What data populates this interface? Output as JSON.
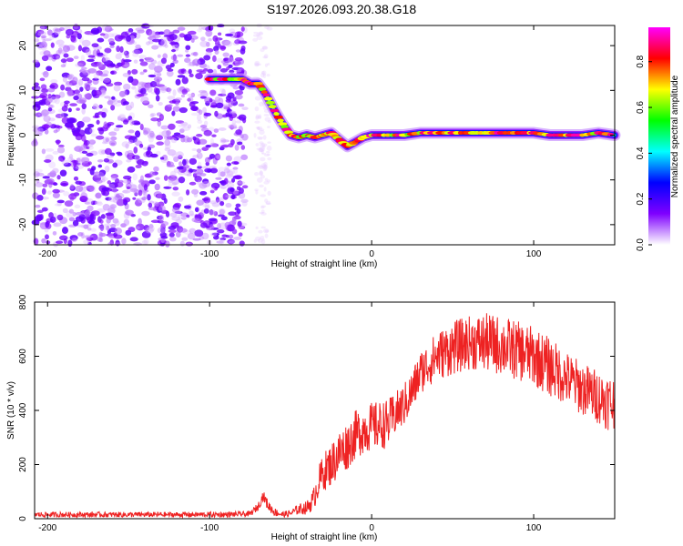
{
  "title": "S197.2026.093.20.38.G18",
  "chart_data": [
    {
      "type": "heatmap",
      "name": "spectrogram",
      "xlabel": "Height of straight line (km)",
      "ylabel": "Frequency (Hz)",
      "xlim": [
        -208,
        150
      ],
      "ylim": [
        -24.5,
        24.5
      ],
      "xticks": [
        "-200",
        "-100",
        "0",
        "100"
      ],
      "xtick_values": [
        -200,
        -100,
        0,
        100
      ],
      "yticks": [
        "-20",
        "-10",
        "0",
        "10",
        "20"
      ],
      "ytick_values": [
        -20,
        -10,
        0,
        10,
        20
      ],
      "noise_region_x": [
        -208,
        -78
      ],
      "sparse_noise_region_x": [
        -72,
        -63
      ],
      "ridge": {
        "x": [
          -100,
          -90,
          -80,
          -75,
          -70,
          -65,
          -60,
          -55,
          -50,
          -45,
          -40,
          -35,
          -30,
          -25,
          -20,
          -15,
          -10,
          -5,
          0,
          10,
          20,
          30,
          40,
          50,
          60,
          70,
          80,
          90,
          100,
          110,
          120,
          130,
          140,
          150
        ],
        "y": [
          12.5,
          12.5,
          12.5,
          11.5,
          11.5,
          9.0,
          5.5,
          2.5,
          0.0,
          -0.5,
          0.0,
          -0.5,
          0.0,
          0.5,
          -1.0,
          -2.5,
          -1.5,
          -0.5,
          0.0,
          0.0,
          0.0,
          0.5,
          0.5,
          0.5,
          0.5,
          0.5,
          0.5,
          0.5,
          0.5,
          0.0,
          0.0,
          0.0,
          0.5,
          0.0
        ]
      },
      "colorbar": {
        "label": "Normalized spectral amplitude",
        "ticks": [
          "0.0",
          "0.2",
          "0.4",
          "0.6",
          "0.8"
        ],
        "tick_values": [
          0.0,
          0.2,
          0.4,
          0.6,
          0.8
        ],
        "range": [
          0.0,
          0.95
        ],
        "colormap": [
          "#ffffff",
          "#7f00ff",
          "#0000ff",
          "#00ffff",
          "#00ff00",
          "#ffff00",
          "#ff0000",
          "#ff00ff"
        ]
      }
    },
    {
      "type": "line",
      "name": "snr",
      "xlabel": "Height of straight line (km)",
      "ylabel": "SNR (10 * v/v)",
      "xlim": [
        -208,
        150
      ],
      "ylim": [
        0,
        800
      ],
      "xticks": [
        "-200",
        "-100",
        "0",
        "100"
      ],
      "xtick_values": [
        -200,
        -100,
        0,
        100
      ],
      "yticks": [
        "0",
        "200",
        "400",
        "600",
        "800"
      ],
      "ytick_values": [
        0,
        200,
        400,
        600,
        800
      ],
      "color": "#ee2222",
      "series": [
        {
          "name": "SNR",
          "x": [
            -208,
            -190,
            -170,
            -150,
            -130,
            -110,
            -90,
            -75,
            -70,
            -67,
            -64,
            -60,
            -55,
            -50,
            -45,
            -40,
            -36,
            -33,
            -30,
            -25,
            -20,
            -15,
            -10,
            -5,
            0,
            5,
            10,
            15,
            20,
            25,
            30,
            40,
            50,
            60,
            70,
            80,
            90,
            100,
            110,
            120,
            130,
            140,
            150
          ],
          "mean": [
            15,
            15,
            15,
            15,
            15,
            15,
            15,
            18,
            45,
            85,
            50,
            25,
            15,
            20,
            35,
            40,
            70,
            130,
            170,
            200,
            240,
            270,
            310,
            330,
            340,
            345,
            350,
            390,
            420,
            470,
            540,
            600,
            630,
            650,
            650,
            640,
            620,
            600,
            560,
            520,
            480,
            450,
            420
          ],
          "amp": [
            10,
            10,
            10,
            10,
            10,
            10,
            10,
            10,
            15,
            20,
            20,
            15,
            12,
            12,
            20,
            25,
            40,
            60,
            70,
            80,
            90,
            90,
            90,
            90,
            90,
            90,
            90,
            80,
            80,
            80,
            80,
            90,
            100,
            100,
            110,
            110,
            110,
            110,
            110,
            100,
            100,
            100,
            110
          ]
        }
      ]
    }
  ]
}
